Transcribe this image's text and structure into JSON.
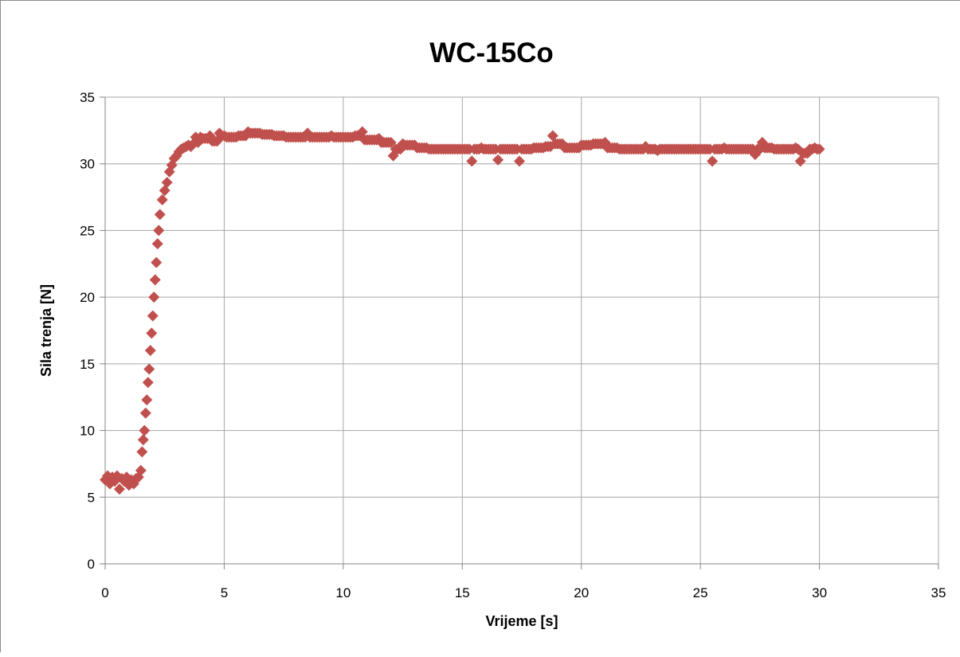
{
  "chart_data": {
    "type": "scatter",
    "title": "WC-15Co",
    "xlabel": "Vrijeme [s]",
    "ylabel": "Sila trenja [N]",
    "xlim": [
      0,
      35
    ],
    "ylim": [
      0,
      35
    ],
    "x_ticks": [
      0,
      5,
      10,
      15,
      20,
      25,
      30,
      35
    ],
    "y_ticks": [
      0,
      5,
      10,
      15,
      20,
      25,
      30,
      35
    ],
    "grid": true,
    "legend": "none",
    "marker": "diamond",
    "marker_color": "#c0504d",
    "series": [
      {
        "x": [
          0.0,
          0.1,
          0.2,
          0.3,
          0.4,
          0.5,
          0.6,
          0.7,
          0.8,
          0.9,
          1.0,
          1.1,
          1.2,
          1.3,
          1.4,
          1.5,
          1.55,
          1.6,
          1.65,
          1.7,
          1.75,
          1.8,
          1.85,
          1.9,
          1.95,
          2.0,
          2.05,
          2.1,
          2.15,
          2.2,
          2.25,
          2.3,
          2.4,
          2.5,
          2.6,
          2.7,
          2.8,
          2.9,
          3.0,
          3.1,
          3.2,
          3.3,
          3.4,
          3.5,
          3.6,
          3.7,
          3.8,
          3.9,
          4.0,
          4.2,
          4.4,
          4.6,
          4.8,
          5.0,
          5.3,
          5.6,
          6.0,
          6.5,
          7.0,
          7.5,
          8.0,
          8.5,
          9.0,
          9.5,
          10.0,
          10.5,
          10.8,
          11.0,
          11.5,
          12.0,
          12.1,
          12.5,
          13.0,
          13.5,
          14.0,
          14.5,
          15.0,
          15.4,
          15.8,
          16.2,
          16.5,
          17.0,
          17.4,
          18.0,
          18.5,
          18.8,
          19.2,
          19.6,
          20.0,
          20.5,
          21.0,
          21.5,
          22.0,
          22.7,
          23.2,
          23.8,
          24.5,
          25.0,
          25.5,
          26.0,
          26.5,
          27.0,
          27.3,
          27.6,
          28.0,
          28.5,
          29.0,
          29.2,
          29.5,
          29.8,
          30.0
        ],
        "y": [
          6.3,
          6.6,
          6.0,
          6.5,
          6.2,
          6.6,
          5.6,
          6.4,
          6.2,
          6.5,
          5.9,
          6.3,
          6.0,
          6.4,
          6.5,
          7.0,
          8.4,
          9.3,
          10.0,
          11.3,
          12.3,
          13.6,
          14.6,
          16.0,
          17.3,
          18.6,
          20.0,
          21.3,
          22.6,
          24.0,
          25.0,
          26.2,
          27.3,
          28.0,
          28.6,
          29.4,
          29.9,
          30.4,
          30.6,
          30.9,
          31.1,
          31.2,
          31.3,
          31.4,
          31.3,
          31.5,
          32.0,
          31.6,
          32.0,
          31.9,
          32.1,
          31.7,
          32.3,
          32.1,
          32.0,
          32.1,
          32.4,
          32.3,
          32.2,
          32.1,
          32.0,
          32.3,
          32.0,
          32.1,
          32.0,
          32.1,
          32.4,
          31.8,
          31.9,
          31.6,
          30.6,
          31.5,
          31.4,
          31.2,
          31.1,
          31.1,
          31.1,
          30.2,
          31.2,
          31.1,
          30.3,
          31.1,
          30.2,
          31.2,
          31.3,
          32.1,
          31.5,
          31.2,
          31.4,
          31.5,
          31.6,
          31.2,
          31.1,
          31.3,
          31.0,
          31.1,
          31.1,
          31.1,
          30.2,
          31.2,
          31.1,
          31.1,
          30.7,
          31.6,
          31.2,
          31.1,
          31.2,
          30.2,
          30.8,
          31.2,
          31.1
        ]
      }
    ]
  }
}
